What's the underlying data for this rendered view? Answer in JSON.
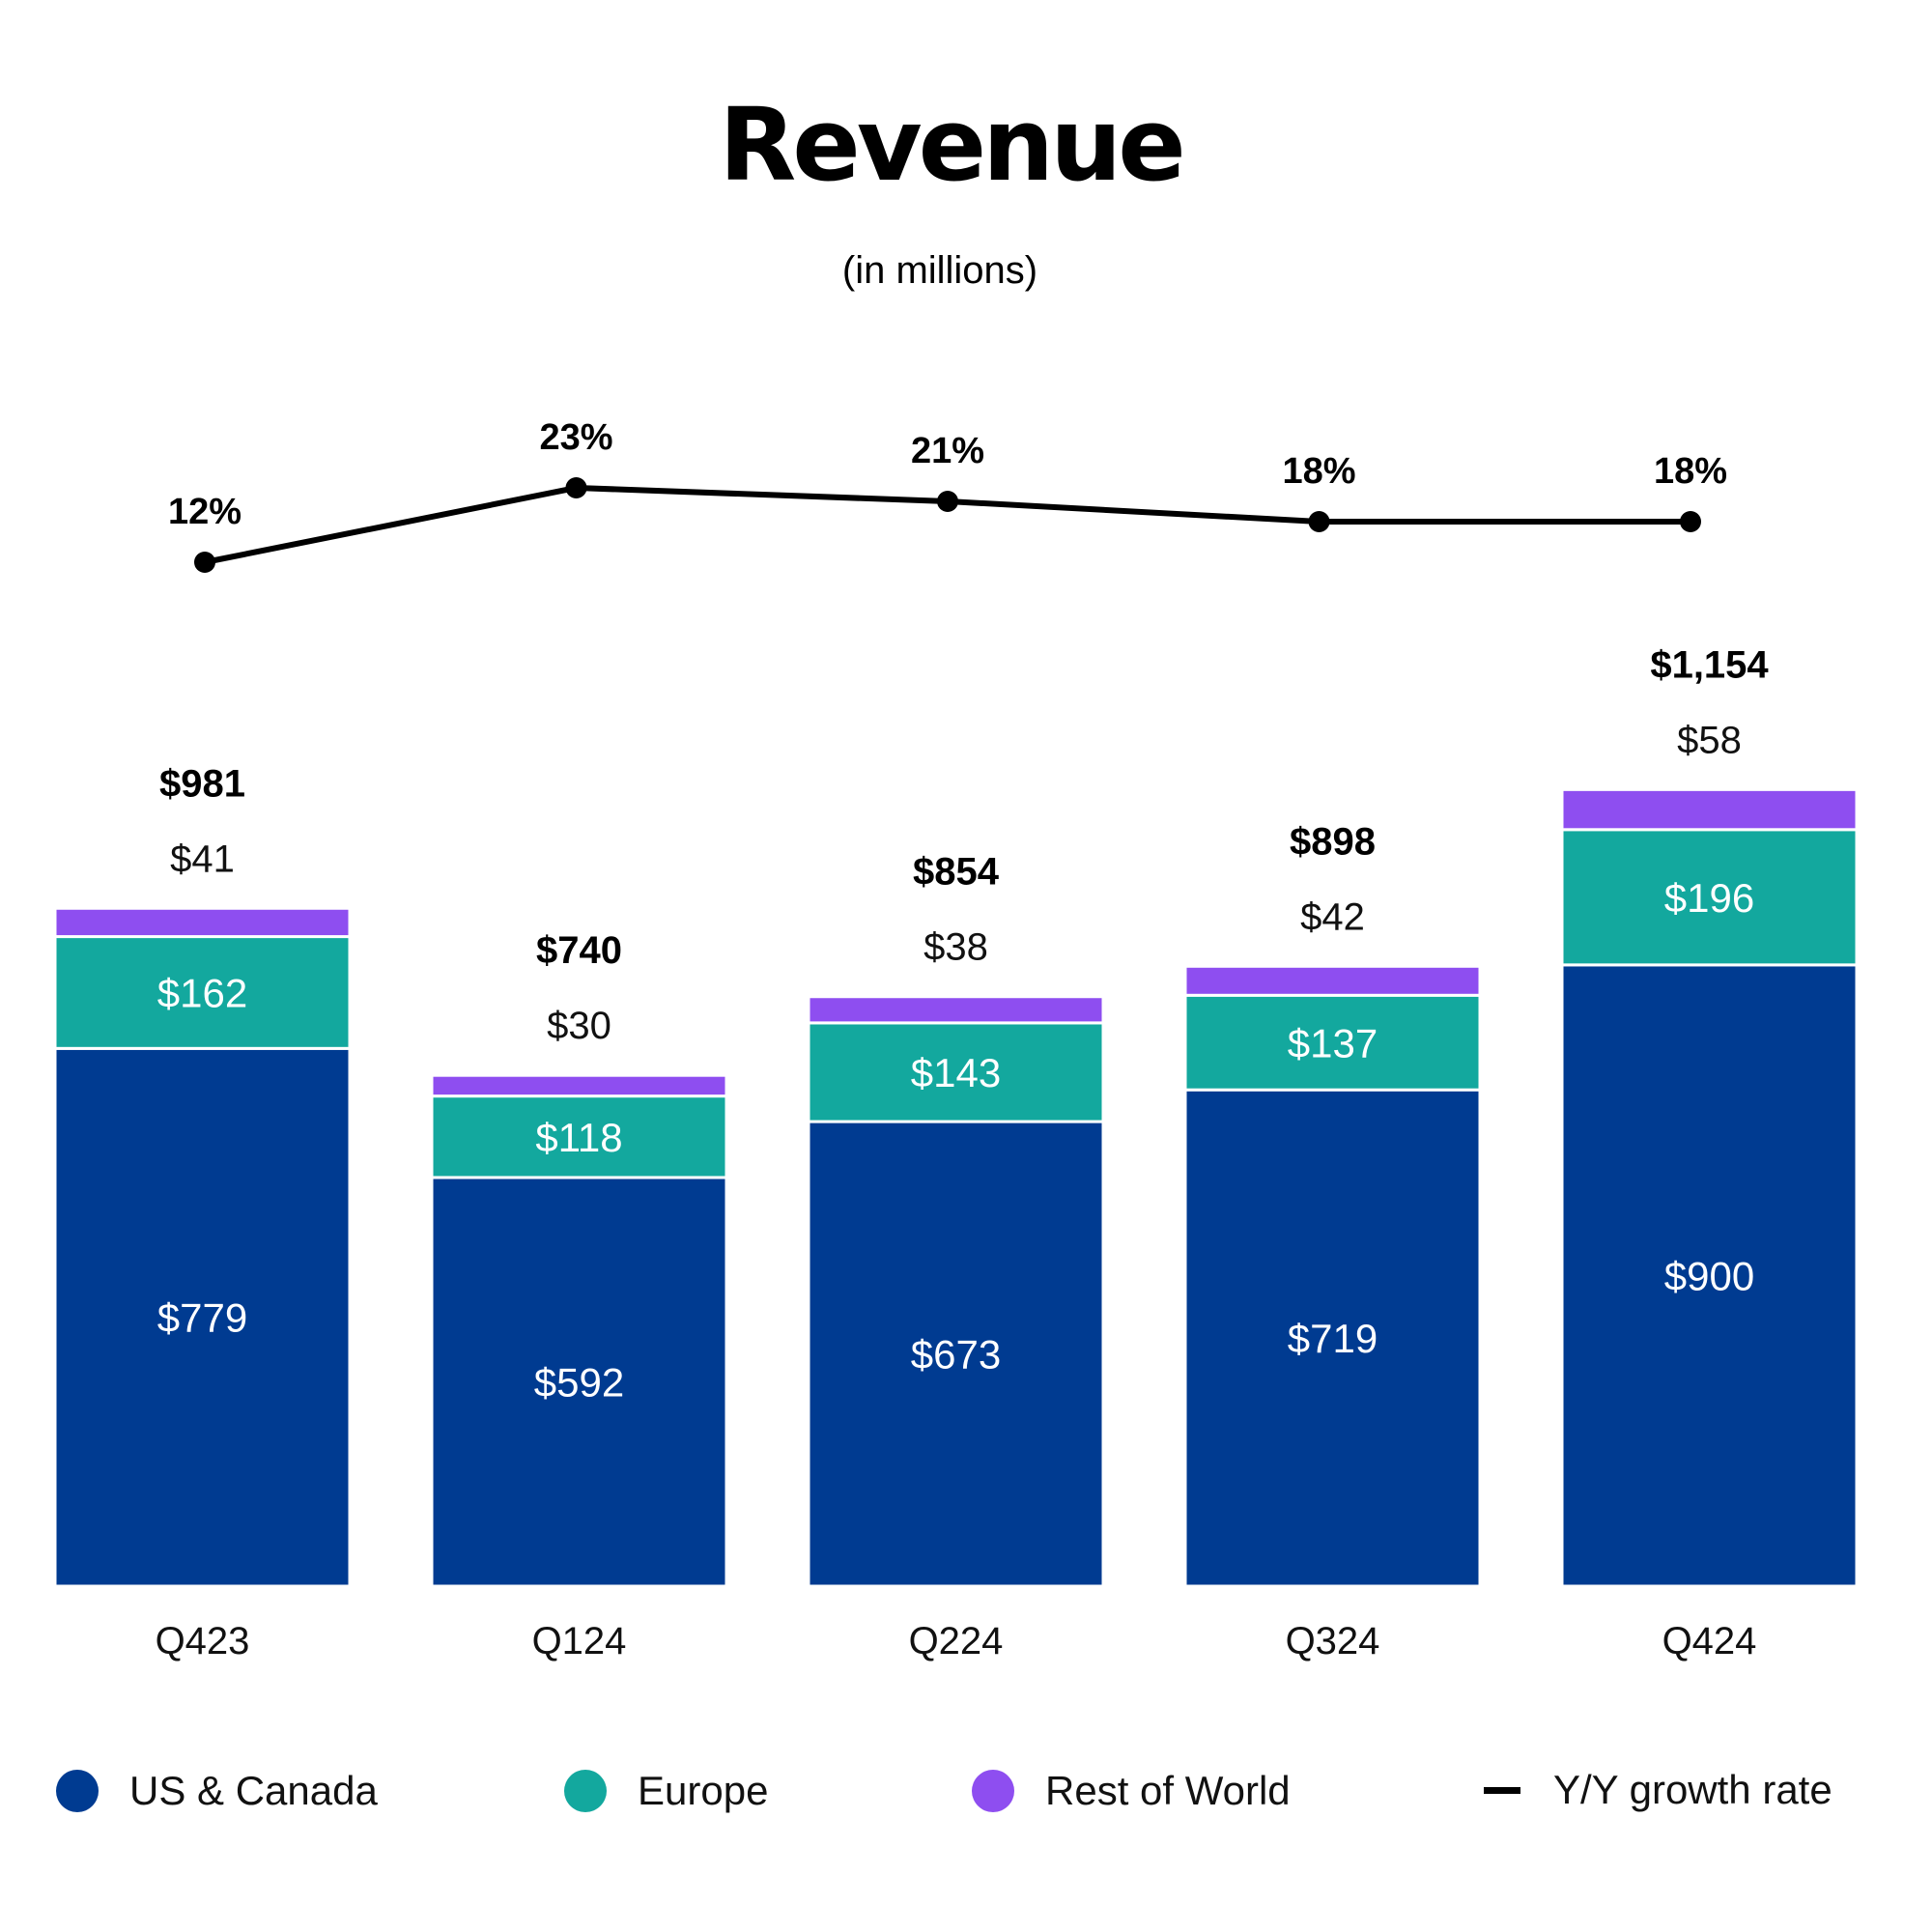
{
  "chart_data": {
    "type": "bar",
    "stacked": true,
    "title": "Revenue",
    "subtitle": "(in millions)",
    "categories": [
      "Q423",
      "Q124",
      "Q224",
      "Q324",
      "Q424"
    ],
    "series": [
      {
        "name": "US & Canada",
        "color": "#003b91",
        "values": [
          779,
          592,
          673,
          719,
          900
        ],
        "labels": [
          "$779",
          "$592",
          "$673",
          "$719",
          "$900"
        ]
      },
      {
        "name": "Europe",
        "color": "#13a89e",
        "values": [
          162,
          118,
          143,
          137,
          196
        ],
        "labels": [
          "$162",
          "$118",
          "$143",
          "$137",
          "$196"
        ]
      },
      {
        "name": "Rest of World",
        "color": "#8e4ef0",
        "values": [
          41,
          30,
          38,
          42,
          58
        ],
        "labels": [
          "$41",
          "$30",
          "$38",
          "$42",
          "$58"
        ]
      }
    ],
    "totals": [
      981,
      740,
      854,
      898,
      1154
    ],
    "total_labels": [
      "$981",
      "$740",
      "$854",
      "$898",
      "$1,154"
    ],
    "growth": {
      "name": "Y/Y growth rate",
      "color": "#000000",
      "values": [
        12,
        23,
        21,
        18,
        18
      ],
      "labels": [
        "12%",
        "23%",
        "21%",
        "18%",
        "18%"
      ]
    },
    "grid": false,
    "legend_position": "bottom"
  }
}
